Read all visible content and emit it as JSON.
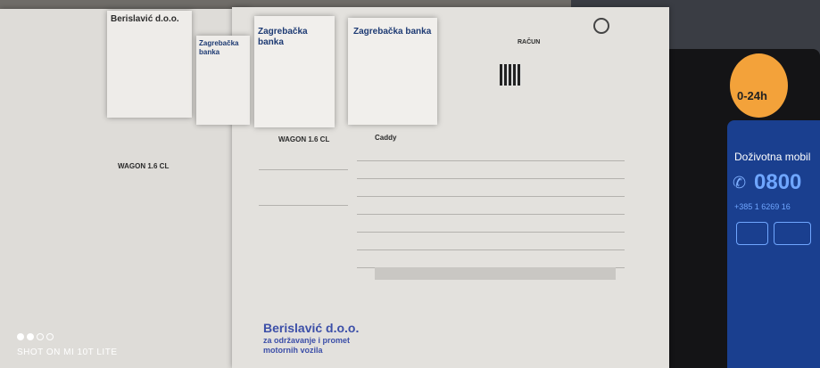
{
  "documents": {
    "receipt_left": {
      "company": "Berislavić d.o.o."
    },
    "bank_receipt_1": {
      "bank": "Zagrebačka banka"
    },
    "bank_receipt_2": {
      "bank": "Zagrebačka banka"
    },
    "invoice_main": {
      "title": "RAČUN",
      "vehicle": "Caddy"
    },
    "invoice_left": {
      "vehicle": "WAGON 1.6 CL"
    },
    "stamp": {
      "line1": "Berislavić d.o.o.",
      "line2": "za održavanje i promet",
      "line3": "motornih vozila"
    }
  },
  "flyer": {
    "badge": "0-24h",
    "heading": "Doživotna mobil",
    "phone": "0800",
    "phone_alt": "+385 1 6269 16"
  },
  "watermark": {
    "text": "SHOT ON MI 10T LITE"
  },
  "colors": {
    "flyer_blue": "#1a3f8f",
    "badge_orange": "#f3a23a",
    "stamp_blue": "#3c4fa8"
  }
}
